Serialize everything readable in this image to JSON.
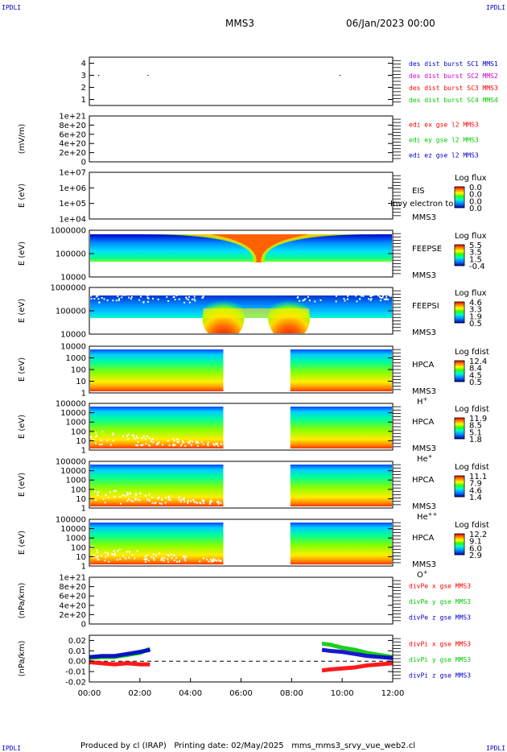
{
  "header": {
    "corner_tl": "IPDLI",
    "corner_tr": "IPDLI",
    "corner_bl": "IPDLI",
    "corner_br": "IPDLI",
    "spacecraft": "MMS3",
    "datetime": "06/Jan/2023 00:00"
  },
  "footer": {
    "text": "Produced by cl (IRAP)   Printing date: 02/May/2025   mms_mms3_srvy_vue_web2.cl"
  },
  "colors": {
    "red": "#ff0000",
    "green": "#00cc00",
    "blue": "#0000cc",
    "magenta": "#cc00cc"
  },
  "x_axis": {
    "range_hours": [
      0,
      12
    ],
    "tick_labels": [
      "00:00",
      "02:00",
      "04:00",
      "06:00",
      "08:00",
      "10:00",
      "12:00"
    ]
  },
  "chart_data": [
    {
      "type": "scatter",
      "id": "burst",
      "ylim": [
        0.5,
        4.5
      ],
      "yticks": [
        "4",
        "3",
        "2",
        "1"
      ],
      "points": [
        {
          "x": 0.35,
          "y": 3
        },
        {
          "x": 2.3,
          "y": 3
        },
        {
          "x": 9.9,
          "y": 3
        }
      ],
      "legend": [
        {
          "text": "des dist burst SC1 MMS1",
          "color": "#0000cc"
        },
        {
          "text": "des dist burst SC2 MMS2",
          "color": "#cc00cc"
        },
        {
          "text": "des dist burst SC3 MMS3",
          "color": "#ff0000"
        },
        {
          "text": "des dist burst SC4 MMS4",
          "color": "#00cc00"
        }
      ]
    },
    {
      "type": "line",
      "id": "edi",
      "ylabel": "(mV/m)",
      "ylim": [
        0,
        1e+21
      ],
      "yticks": [
        "1e+21",
        "8e+20",
        "6e+20",
        "4e+20",
        "2e+20",
        "0"
      ],
      "series": [],
      "legend": [
        {
          "text": "edi ex gse l2 MMS3",
          "color": "#ff0000"
        },
        {
          "text": "edi ey gse l2 MMS3",
          "color": "#00cc00"
        },
        {
          "text": "edi ez gse l2 MMS3",
          "color": "#0000cc"
        }
      ]
    },
    {
      "type": "heatmap",
      "id": "eis",
      "ylabel": "E (eV)",
      "yscale": "log",
      "ylim": [
        10000.0,
        10000000.0
      ],
      "yticks": [
        "1e+07",
        "1e+06",
        "1e+05",
        "1e+04"
      ],
      "labels": [
        "EIS",
        "MMS3"
      ],
      "overlay_text": "Invy electron to",
      "colorbar": {
        "title": "Log flux",
        "ticks": [
          "0.0",
          "0.0",
          "0.0",
          "0.0"
        ]
      },
      "data_present": false
    },
    {
      "type": "heatmap",
      "id": "feepse",
      "ylabel": "E (eV)",
      "yscale": "log",
      "ylim": [
        10000,
        1000000
      ],
      "yticks": [
        "1000000",
        "100000",
        "10000"
      ],
      "labels": [
        "FEEPSE",
        "MMS3"
      ],
      "colorbar": {
        "title": "Log flux",
        "ticks": [
          "5.5",
          "3.5",
          "1.5",
          "-0.4"
        ]
      },
      "data_present": true
    },
    {
      "type": "heatmap",
      "id": "feepsi",
      "ylabel": "E (eV)",
      "yscale": "log",
      "ylim": [
        10000,
        1000000
      ],
      "yticks": [
        "1000000",
        "100000",
        "10000"
      ],
      "labels": [
        "FEEPSI",
        "MMS3"
      ],
      "colorbar": {
        "title": "Log flux",
        "ticks": [
          "4.6",
          "3.3",
          "1.9",
          "0.5"
        ]
      },
      "data_present": true
    },
    {
      "type": "heatmap",
      "id": "hpca_h",
      "ylabel": "E (eV)",
      "yscale": "log",
      "ylim": [
        1,
        10000
      ],
      "yticks": [
        "10000",
        "1000",
        "100",
        "10",
        "1"
      ],
      "labels": [
        "HPCA",
        "MMS3"
      ],
      "species": "H",
      "species_charge": "+",
      "colorbar": {
        "title": "Log fdist",
        "ticks": [
          "12.4",
          "8.4",
          "4.5",
          "0.5"
        ]
      },
      "gap_hours": [
        5.3,
        7.95
      ],
      "data_present": true
    },
    {
      "type": "heatmap",
      "id": "hpca_he",
      "ylabel": "E (eV)",
      "yscale": "log",
      "ylim": [
        1,
        100000
      ],
      "yticks": [
        "100000",
        "10000",
        "1000",
        "100",
        "10",
        "1"
      ],
      "labels": [
        "HPCA",
        "MMS3"
      ],
      "species": "He",
      "species_charge": "+",
      "colorbar": {
        "title": "Log fdist",
        "ticks": [
          "11.9",
          "8.5",
          "5.1",
          "1.8"
        ]
      },
      "gap_hours": [
        5.3,
        7.95
      ],
      "data_present": true
    },
    {
      "type": "heatmap",
      "id": "hpca_hepp",
      "ylabel": "E (eV)",
      "yscale": "log",
      "ylim": [
        1,
        100000
      ],
      "yticks": [
        "100000",
        "10000",
        "1000",
        "100",
        "10",
        "1"
      ],
      "labels": [
        "HPCA",
        "MMS3"
      ],
      "species": "He",
      "species_charge": "++",
      "colorbar": {
        "title": "Log fdist",
        "ticks": [
          "11.1",
          "7.9",
          "4.6",
          "1.4"
        ]
      },
      "gap_hours": [
        5.3,
        7.95
      ],
      "data_present": true
    },
    {
      "type": "heatmap",
      "id": "hpca_o",
      "ylabel": "E (eV)",
      "yscale": "log",
      "ylim": [
        1,
        100000
      ],
      "yticks": [
        "100000",
        "10000",
        "1000",
        "100",
        "10",
        "1"
      ],
      "labels": [
        "HPCA",
        "MMS3"
      ],
      "species": "O",
      "species_charge": "+",
      "colorbar": {
        "title": "Log fdist",
        "ticks": [
          "12.2",
          "9.1",
          "6.0",
          "2.9"
        ]
      },
      "gap_hours": [
        5.3,
        7.95
      ],
      "data_present": true
    },
    {
      "type": "line",
      "id": "divpe",
      "ylabel": "(nPa/km)",
      "ylim": [
        0,
        1e+21
      ],
      "yticks": [
        "1e+21",
        "8e+20",
        "6e+20",
        "4e+20",
        "2e+20",
        "0"
      ],
      "series": [],
      "legend": [
        {
          "text": "divPe x gse MMS3",
          "color": "#ff0000"
        },
        {
          "text": "divPe y gse MMS3",
          "color": "#00cc00"
        },
        {
          "text": "divPe z gse MMS3",
          "color": "#0000cc"
        }
      ]
    },
    {
      "type": "line",
      "id": "divpi",
      "ylabel": "(nPa/km)",
      "ylim": [
        -0.02,
        0.025
      ],
      "yticks": [
        "0.02",
        "0.01",
        "0.00",
        "-0.01",
        "-0.02"
      ],
      "series": [
        {
          "name": "divPi x gse MMS3",
          "color": "#ff0000",
          "segments": [
            {
              "x": [
                0.0,
                0.5,
                1.0,
                1.5,
                2.0,
                2.4
              ],
              "y": [
                -0.001,
                -0.002,
                -0.003,
                -0.002,
                -0.003,
                -0.003
              ]
            },
            {
              "x": [
                9.2,
                9.5,
                10.0,
                10.5,
                11.0,
                11.5,
                12.0
              ],
              "y": [
                -0.009,
                -0.008,
                -0.007,
                -0.006,
                -0.004,
                -0.003,
                -0.002
              ]
            }
          ]
        },
        {
          "name": "divPi y gse MMS3",
          "color": "#00cc00",
          "segments": [
            {
              "x": [
                0.0,
                0.5,
                1.0,
                1.5,
                2.0,
                2.4
              ],
              "y": [
                0.003,
                0.004,
                0.004,
                0.006,
                0.008,
                0.012
              ]
            },
            {
              "x": [
                9.2,
                9.5,
                10.0,
                10.5,
                11.0,
                11.5,
                12.0
              ],
              "y": [
                0.017,
                0.016,
                0.013,
                0.011,
                0.008,
                0.006,
                0.004
              ]
            }
          ]
        },
        {
          "name": "divPi z gse MMS3",
          "color": "#0000cc",
          "segments": [
            {
              "x": [
                0.0,
                0.5,
                1.0,
                1.5,
                2.0,
                2.4
              ],
              "y": [
                0.004,
                0.005,
                0.005,
                0.007,
                0.009,
                0.011
              ]
            },
            {
              "x": [
                9.2,
                9.5,
                10.0,
                10.5,
                11.0,
                11.5,
                12.0
              ],
              "y": [
                0.011,
                0.01,
                0.009,
                0.007,
                0.005,
                0.004,
                0.003
              ]
            }
          ]
        }
      ],
      "legend": [
        {
          "text": "divPi x gse MMS3",
          "color": "#ff0000"
        },
        {
          "text": "divPi y gse MMS3",
          "color": "#00cc00"
        },
        {
          "text": "divPi z gse MMS3",
          "color": "#0000cc"
        }
      ]
    }
  ]
}
